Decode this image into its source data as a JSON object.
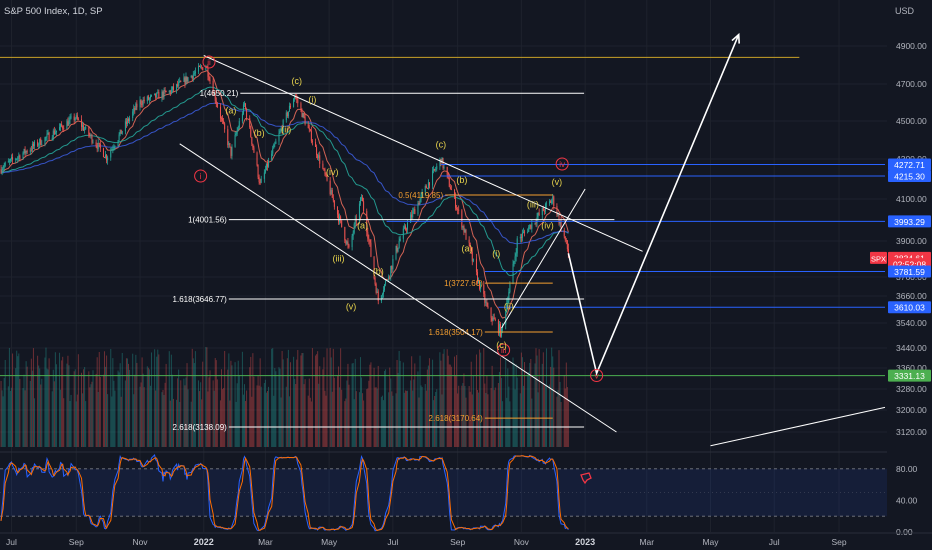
{
  "header": {
    "symbol_title": "S&P 500 Index, 1D, SP",
    "currency": "USD"
  },
  "colors": {
    "bg": "#131722",
    "up": "#26a69a",
    "down": "#ef5350",
    "wave_label": "#e8d44d",
    "fib_label": "#f59f30",
    "primary_wave": "#f23645",
    "blue_level": "#2962ff",
    "green_level": "#4caf50",
    "gold_line": "#c9a227",
    "ema_fast": "#e56a5a",
    "ema_mid": "#26a69a",
    "ema_slow": "#3b5bd9",
    "stoch_k": "#2962ff",
    "stoch_d": "#ff6d00"
  },
  "chart_data": {
    "type": "candlestick",
    "title": "S&P 500 Index, 1D, SP",
    "y_axis": {
      "ticks": [
        "4900.00",
        "4700.00",
        "4500.00",
        "4300.00",
        "4100.00",
        "3900.00",
        "3760.00",
        "3660.00",
        "3540.00",
        "3440.00",
        "3360.00",
        "3280.00",
        "3200.00",
        "3120.00"
      ],
      "unit": "USD"
    },
    "x_axis": {
      "ticks": [
        "Jul",
        "Sep",
        "Nov",
        "2022",
        "Mar",
        "May",
        "Jul",
        "Sep",
        "Nov",
        "2023",
        "Mar",
        "May",
        "Jul",
        "Sep"
      ]
    },
    "price_path": [
      {
        "date": "2021-06-20",
        "close": 4250
      },
      {
        "date": "2021-07-31",
        "close": 4400
      },
      {
        "date": "2021-08-31",
        "close": 4520
      },
      {
        "date": "2021-09-30",
        "close": 4310
      },
      {
        "date": "2021-10-31",
        "close": 4600
      },
      {
        "date": "2021-11-30",
        "close": 4660
      },
      {
        "date": "2021-12-31",
        "close": 4790
      },
      {
        "date": "2022-01-03",
        "close": 4800
      },
      {
        "date": "2022-01-27",
        "close": 4330
      },
      {
        "date": "2022-02-09",
        "close": 4590
      },
      {
        "date": "2022-02-24",
        "close": 4170
      },
      {
        "date": "2022-03-29",
        "close": 4640
      },
      {
        "date": "2022-04-15",
        "close": 4400
      },
      {
        "date": "2022-05-20",
        "close": 3860
      },
      {
        "date": "2022-06-01",
        "close": 4110
      },
      {
        "date": "2022-06-17",
        "close": 3640
      },
      {
        "date": "2022-07-07",
        "close": 3900
      },
      {
        "date": "2022-08-16",
        "close": 4300
      },
      {
        "date": "2022-09-30",
        "close": 3590
      },
      {
        "date": "2022-10-13",
        "close": 3500
      },
      {
        "date": "2022-10-28",
        "close": 3900
      },
      {
        "date": "2022-12-01",
        "close": 4100
      },
      {
        "date": "2022-12-16",
        "close": 3852
      }
    ],
    "price_labels": [
      {
        "text": "3834.61",
        "value": 3834.61,
        "color": "#f23645",
        "tag": "SPX"
      },
      {
        "text": "02:52:08",
        "value": 3810,
        "color": "#f23645"
      },
      {
        "text": "4272.71",
        "value": 4272.71,
        "color": "#2962ff"
      },
      {
        "text": "4215.30",
        "value": 4215.3,
        "color": "#2962ff"
      },
      {
        "text": "3993.29",
        "value": 3993.29,
        "color": "#2962ff"
      },
      {
        "text": "3781.59",
        "value": 3781.59,
        "color": "#2962ff"
      },
      {
        "text": "3610.03",
        "value": 3610.03,
        "color": "#2962ff"
      },
      {
        "text": "3331.13",
        "value": 3331.13,
        "color": "#4caf50"
      }
    ],
    "horizontal_levels": [
      {
        "label": "1(4650.21)",
        "value": 4650.21,
        "color": "#ffffff",
        "from": "2022-02-05",
        "to": "2022-12-31"
      },
      {
        "label": "0.5(4119.85)",
        "value": 4119.85,
        "color": "#f59f30",
        "from": "2022-08-20",
        "to": "2022-12-01"
      },
      {
        "label": "1(4001.56)",
        "value": 4001.56,
        "color": "#ffffff",
        "from": "2022-01-25",
        "to": "2023-01-29"
      },
      {
        "label": "1(3727.60)",
        "value": 3727.6,
        "color": "#f59f30",
        "from": "2022-09-27",
        "to": "2022-12-01"
      },
      {
        "label": "1.618(3646.77)",
        "value": 3646.77,
        "color": "#ffffff",
        "from": "2022-01-25",
        "to": "2022-12-31"
      },
      {
        "label": "1.618(3504.17)",
        "value": 3504.17,
        "color": "#f59f30",
        "from": "2022-09-27",
        "to": "2022-12-01"
      },
      {
        "label": "2.618(3170.64)",
        "value": 3170.64,
        "color": "#f59f30",
        "from": "2022-09-27",
        "to": "2022-12-01"
      },
      {
        "label": "2.618(3138.09)",
        "value": 3138.09,
        "color": "#ffffff",
        "from": "2022-01-25",
        "to": "2022-12-31"
      },
      {
        "label": "",
        "value": 4840,
        "color": "#c9a227",
        "from": "2021-06-20",
        "to": "2023-07-25"
      },
      {
        "label": "",
        "value": 4272.71,
        "color": "#2962ff",
        "from": "2022-08-16",
        "to": "2023-10-15"
      },
      {
        "label": "",
        "value": 4215.3,
        "color": "#2962ff",
        "from": "2022-08-16",
        "to": "2023-10-15"
      },
      {
        "label": "",
        "value": 3993.29,
        "color": "#2962ff",
        "from": "2022-06-25",
        "to": "2023-10-15"
      },
      {
        "label": "",
        "value": 3781.59,
        "color": "#2962ff",
        "from": "2022-09-27",
        "to": "2023-10-15"
      },
      {
        "label": "",
        "value": 3610.03,
        "color": "#2962ff",
        "from": "2022-10-10",
        "to": "2023-10-15"
      },
      {
        "label": "",
        "value": 3331.13,
        "color": "#4caf50",
        "from": "2021-06-20",
        "to": "2023-10-15"
      }
    ],
    "wave_labels": [
      {
        "text": "ii",
        "date": "2022-01-06",
        "value": 4800,
        "color": "#f23645",
        "circled": true
      },
      {
        "text": "i",
        "date": "2021-12-29",
        "value": 4200,
        "color": "#f23645",
        "circled": true
      },
      {
        "text": "iii",
        "date": "2022-10-15",
        "value": 3420,
        "color": "#f23645",
        "circled": true
      },
      {
        "text": "iv",
        "date": "2022-12-10",
        "value": 4260,
        "color": "#f23645",
        "circled": true
      },
      {
        "text": "v",
        "date": "2023-01-12",
        "value": 3320,
        "color": "#f23645",
        "circled": true
      },
      {
        "text": "(c)",
        "date": "2022-03-31",
        "value": 4700,
        "color": "#e8d44d"
      },
      {
        "text": "(a)",
        "date": "2022-01-27",
        "value": 4540,
        "color": "#e8d44d"
      },
      {
        "text": "(b)",
        "date": "2022-02-23",
        "value": 4420,
        "color": "#e8d44d"
      },
      {
        "text": "(i)",
        "date": "2022-04-15",
        "value": 4600,
        "color": "#e8d44d"
      },
      {
        "text": "(ii)",
        "date": "2022-03-21",
        "value": 4440,
        "color": "#e8d44d"
      },
      {
        "text": "(iv)",
        "date": "2022-05-04",
        "value": 4220,
        "color": "#e8d44d"
      },
      {
        "text": "(iii)",
        "date": "2022-05-10",
        "value": 3820,
        "color": "#e8d44d"
      },
      {
        "text": "(a)",
        "date": "2022-06-02",
        "value": 3960,
        "color": "#e8d44d"
      },
      {
        "text": "(b)",
        "date": "2022-06-17",
        "value": 3770,
        "color": "#e8d44d"
      },
      {
        "text": "(v)",
        "date": "2022-05-22",
        "value": 3600,
        "color": "#e8d44d"
      },
      {
        "text": "(c)",
        "date": "2022-08-16",
        "value": 4360,
        "color": "#e8d44d"
      },
      {
        "text": "(b)",
        "date": "2022-09-05",
        "value": 4180,
        "color": "#e8d44d"
      },
      {
        "text": "(a)",
        "date": "2022-09-10",
        "value": 3860,
        "color": "#e8d44d"
      },
      {
        "text": "(i)",
        "date": "2022-10-08",
        "value": 3840,
        "color": "#e8d44d"
      },
      {
        "text": "(ii)",
        "date": "2022-10-20",
        "value": 3600,
        "color": "#e8d44d"
      },
      {
        "text": "(c)",
        "date": "2022-10-13",
        "value": 3440,
        "color": "#e8d44d"
      },
      {
        "text": "(iii)",
        "date": "2022-11-12",
        "value": 4060,
        "color": "#e8d44d"
      },
      {
        "text": "(iv)",
        "date": "2022-11-26",
        "value": 3960,
        "color": "#e8d44d"
      },
      {
        "text": "(v)",
        "date": "2022-12-05",
        "value": 4170,
        "color": "#e8d44d"
      }
    ],
    "channel_lines": [
      {
        "from": {
          "date": "2022-01-01",
          "value": 4850
        },
        "to": {
          "date": "2023-02-25",
          "value": 3860
        },
        "color": "#ffffff"
      },
      {
        "from": {
          "date": "2021-12-09",
          "value": 4380
        },
        "to": {
          "date": "2023-01-31",
          "value": 3120
        },
        "color": "#ffffff"
      },
      {
        "from": {
          "date": "2022-10-13",
          "value": 3520
        },
        "to": {
          "date": "2023-01-01",
          "value": 4150
        },
        "color": "#ffffff"
      },
      {
        "from": {
          "date": "2023-05-01",
          "value": 3070
        },
        "to": {
          "date": "2023-10-15",
          "value": 3210
        },
        "color": "#ffffff"
      }
    ],
    "projection_path": [
      {
        "date": "2022-12-16",
        "value": 3852
      },
      {
        "date": "2023-01-12",
        "value": 3340
      },
      {
        "date": "2023-05-28",
        "value": 4960
      }
    ],
    "volume_note": "volume histogram overlay, green/red bars",
    "stochastic": {
      "ticks": [
        "80.00",
        "40.00",
        "0.00"
      ],
      "overbought": 80,
      "oversold": 20
    }
  }
}
